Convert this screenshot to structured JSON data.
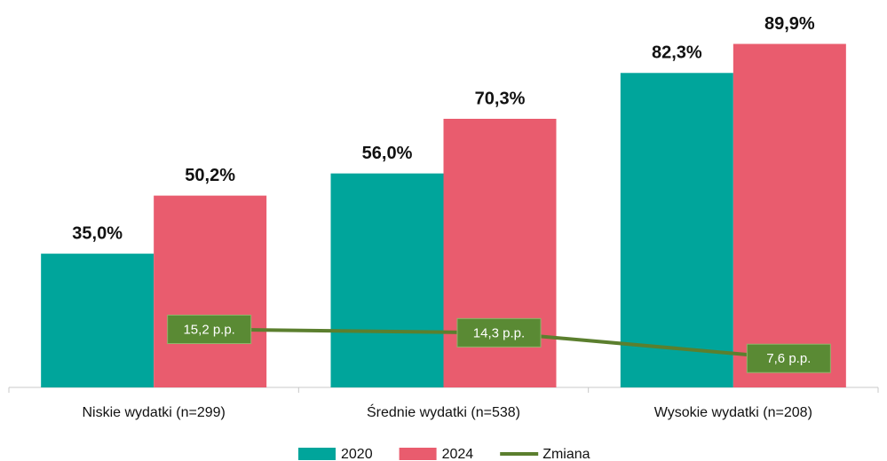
{
  "chart_data": {
    "type": "bar",
    "categories": [
      "Niskie wydatki (n=299)",
      "Średnie wydatki (n=538)",
      "Wysokie wydatki (n=208)"
    ],
    "series": [
      {
        "name": "2020",
        "color": "#00a59b",
        "values": [
          35.0,
          56.0,
          82.3
        ],
        "value_labels": [
          "35,0%",
          "56,0%",
          "82,3%"
        ]
      },
      {
        "name": "2024",
        "color": "#e95c6e",
        "values": [
          50.2,
          70.3,
          89.9
        ],
        "value_labels": [
          "50,2%",
          "70,3%",
          "89,9%"
        ]
      },
      {
        "name": "Zmiana",
        "type": "line",
        "color": "#5b7f2e",
        "values": [
          15.2,
          14.3,
          7.6
        ],
        "value_labels": [
          "15,2 p.p.",
          "14,3 p.p.",
          "7,6 p.p."
        ]
      }
    ],
    "ylim": [
      0,
      100
    ]
  }
}
